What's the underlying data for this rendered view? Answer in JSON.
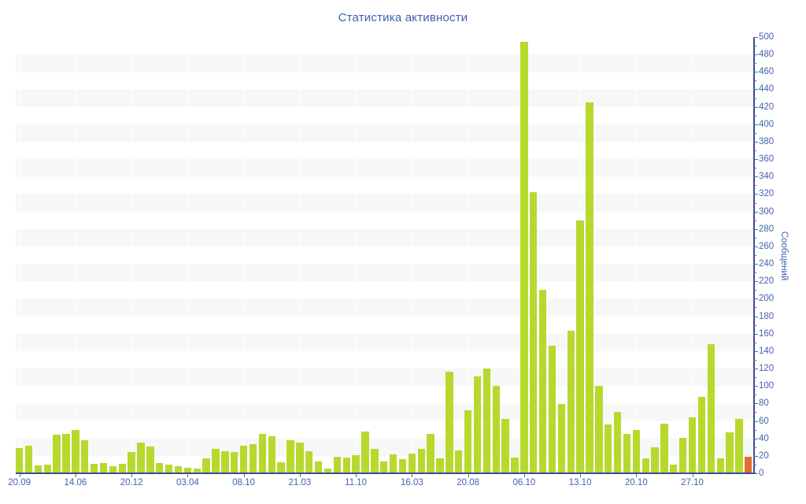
{
  "title": "Статистика активности",
  "colors": {
    "title_text": "#3b64ae",
    "axis_line": "#3a4f8e",
    "tick_mark": "#55699f",
    "tick_label_text": "#4163ae",
    "bar_fill": "#b7d92e",
    "last_bar_fill": "#e0702f",
    "stripe_band": "#f7f7f7",
    "background": "#ffffff"
  },
  "chart_data": {
    "type": "bar",
    "title": "Статистика активности",
    "xlabel": "",
    "ylabel": "Сообщений",
    "ylim": [
      0,
      500
    ],
    "ytick_major_step": 20,
    "ytick_minor_step": 10,
    "legend": "none",
    "grid": "alternating horizontal bands every 20 units, faint vertical lines at x labels",
    "x_tick_labels": [
      "20.09",
      "14.06",
      "20.12",
      "03.04",
      "08.10",
      "21.03",
      "11.10",
      "16.03",
      "20.08",
      "06.10",
      "13.10",
      "20.10",
      "27.10"
    ],
    "x_label_every_n_bars": 6,
    "x_label_first_bar_index": 0,
    "values": [
      29,
      32,
      9,
      10,
      44,
      45,
      50,
      38,
      11,
      12,
      8,
      11,
      24,
      35,
      31,
      12,
      10,
      8,
      6,
      5,
      17,
      28,
      25,
      24,
      32,
      33,
      45,
      42,
      13,
      38,
      35,
      25,
      14,
      5,
      19,
      18,
      21,
      48,
      28,
      14,
      22,
      16,
      23,
      28,
      45,
      17,
      116,
      26,
      72,
      111,
      120,
      100,
      62,
      18,
      495,
      322,
      210,
      146,
      79,
      163,
      290,
      425,
      100,
      56,
      70,
      45,
      50,
      17,
      30,
      57,
      10,
      41,
      64,
      88,
      148,
      17,
      47,
      62,
      19
    ],
    "highlight_last_bar": true
  }
}
